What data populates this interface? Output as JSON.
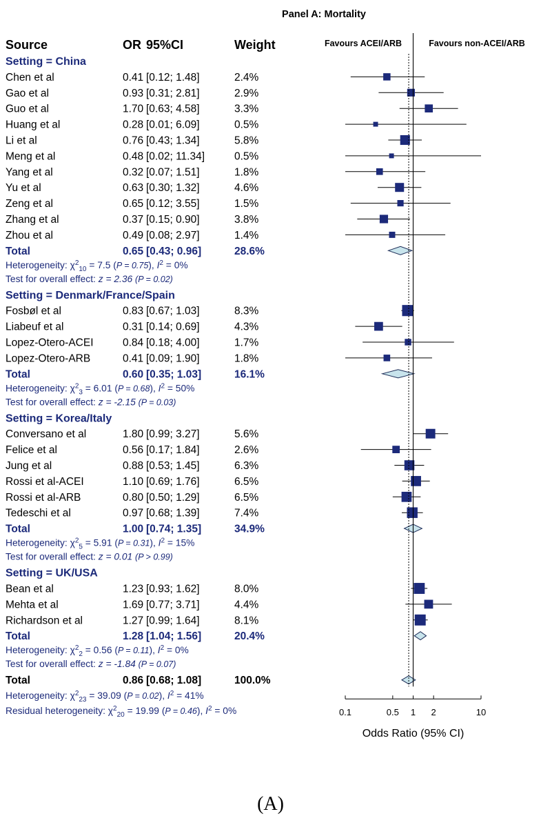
{
  "chart_data": {
    "type": "forest",
    "title": "Panel A: Mortality",
    "caption": "(A)",
    "columns": {
      "source": "Source",
      "or": "OR",
      "ci": "95%CI",
      "weight": "Weight"
    },
    "favours_left": "Favours ACEI/ARB",
    "favours_right": "Favours non-ACEI/ARB",
    "xlabel": "Odds Ratio (95% CI)",
    "x_scale": "log",
    "xlim": [
      0.1,
      10
    ],
    "x_ticks": [
      0.1,
      0.5,
      1,
      2,
      10
    ],
    "x_tick_labels": [
      "0.1",
      "0.5",
      "1",
      "2",
      "10"
    ],
    "reference_line": 1,
    "overall_dashed_line": 0.86,
    "subgroups": [
      {
        "header": "Setting = China",
        "studies": [
          {
            "name": "Chen et al",
            "or": 0.41,
            "lo": 0.12,
            "hi": 1.48,
            "or_text": "0.41",
            "ci_text": "[0.12;  1.48]",
            "weight_text": "2.4%",
            "weight": 2.4
          },
          {
            "name": "Gao et al",
            "or": 0.93,
            "lo": 0.31,
            "hi": 2.81,
            "or_text": "0.93",
            "ci_text": "[0.31;  2.81]",
            "weight_text": "2.9%",
            "weight": 2.9
          },
          {
            "name": "Guo et al",
            "or": 1.7,
            "lo": 0.63,
            "hi": 4.58,
            "or_text": "1.70",
            "ci_text": "[0.63;  4.58]",
            "weight_text": "3.3%",
            "weight": 3.3
          },
          {
            "name": "Huang et al",
            "or": 0.28,
            "lo": 0.01,
            "hi": 6.09,
            "or_text": "0.28",
            "ci_text": "[0.01;  6.09]",
            "weight_text": "0.5%",
            "weight": 0.5
          },
          {
            "name": "Li et al",
            "or": 0.76,
            "lo": 0.43,
            "hi": 1.34,
            "or_text": "0.76",
            "ci_text": "[0.43;  1.34]",
            "weight_text": "5.8%",
            "weight": 5.8
          },
          {
            "name": "Meng et al",
            "or": 0.48,
            "lo": 0.02,
            "hi": 11.34,
            "or_text": "0.48",
            "ci_text": "[0.02; 11.34]",
            "weight_text": "0.5%",
            "weight": 0.5
          },
          {
            "name": "Yang et al",
            "or": 0.32,
            "lo": 0.07,
            "hi": 1.51,
            "or_text": "0.32",
            "ci_text": "[0.07;  1.51]",
            "weight_text": "1.8%",
            "weight": 1.8
          },
          {
            "name": "Yu et al",
            "or": 0.63,
            "lo": 0.3,
            "hi": 1.32,
            "or_text": "0.63",
            "ci_text": "[0.30;  1.32]",
            "weight_text": "4.6%",
            "weight": 4.6
          },
          {
            "name": "Zeng et al",
            "or": 0.65,
            "lo": 0.12,
            "hi": 3.55,
            "or_text": "0.65",
            "ci_text": "[0.12;  3.55]",
            "weight_text": "1.5%",
            "weight": 1.5
          },
          {
            "name": "Zhang et al",
            "or": 0.37,
            "lo": 0.15,
            "hi": 0.9,
            "or_text": "0.37",
            "ci_text": "[0.15;  0.90]",
            "weight_text": "3.8%",
            "weight": 3.8
          },
          {
            "name": "Zhou et al",
            "or": 0.49,
            "lo": 0.08,
            "hi": 2.97,
            "or_text": "0.49",
            "ci_text": "[0.08;  2.97]",
            "weight_text": "1.4%",
            "weight": 1.4
          }
        ],
        "total": {
          "label": "Total",
          "or": 0.65,
          "lo": 0.43,
          "hi": 0.96,
          "or_text": "0.65",
          "ci_text": "[0.43;  0.96]",
          "weight_text": "28.6%"
        },
        "heterogeneity": {
          "lead": "Heterogeneity: χ",
          "sub": "10",
          "sup": "2",
          "mid": " = 7.5 (",
          "p": "P = 0.75",
          "tail": "), ",
          "i2": " = 0%"
        },
        "overall_test": {
          "lead": "Test for overall effect: ",
          "z": "z = 2.36",
          "p": "(P = 0.02)"
        }
      },
      {
        "header": "Setting = Denmark/France/Spain",
        "studies": [
          {
            "name": "Fosbøl et al",
            "or": 0.83,
            "lo": 0.67,
            "hi": 1.03,
            "or_text": "0.83",
            "ci_text": "[0.67;  1.03]",
            "weight_text": "8.3%",
            "weight": 8.3
          },
          {
            "name": "Liabeuf et al",
            "or": 0.31,
            "lo": 0.14,
            "hi": 0.69,
            "or_text": "0.31",
            "ci_text": "[0.14;  0.69]",
            "weight_text": "4.3%",
            "weight": 4.3
          },
          {
            "name": "Lopez-Otero-ACEI",
            "or": 0.84,
            "lo": 0.18,
            "hi": 4.0,
            "or_text": "0.84",
            "ci_text": "[0.18;  4.00]",
            "weight_text": "1.7%",
            "weight": 1.7
          },
          {
            "name": "Lopez-Otero-ARB",
            "or": 0.41,
            "lo": 0.09,
            "hi": 1.9,
            "or_text": "0.41",
            "ci_text": "[0.09;  1.90]",
            "weight_text": "1.8%",
            "weight": 1.8
          }
        ],
        "total": {
          "label": "Total",
          "or": 0.6,
          "lo": 0.35,
          "hi": 1.03,
          "or_text": "0.60",
          "ci_text": "[0.35;  1.03]",
          "weight_text": "16.1%"
        },
        "heterogeneity": {
          "lead": "Heterogeneity: χ",
          "sub": "3",
          "sup": "2",
          "mid": " = 6.01 (",
          "p": "P = 0.68",
          "tail": "), ",
          "i2": " = 50%"
        },
        "overall_test": {
          "lead": "Test for overall effect: ",
          "z": "z = -2.15",
          "p": "(P = 0.03)"
        }
      },
      {
        "header": "Setting = Korea/Italy",
        "studies": [
          {
            "name": "Conversano et al",
            "or": 1.8,
            "lo": 0.99,
            "hi": 3.27,
            "or_text": "1.80",
            "ci_text": "[0.99;  3.27]",
            "weight_text": "5.6%",
            "weight": 5.6
          },
          {
            "name": "Felice et al",
            "or": 0.56,
            "lo": 0.17,
            "hi": 1.84,
            "or_text": "0.56",
            "ci_text": "[0.17;  1.84]",
            "weight_text": "2.6%",
            "weight": 2.6
          },
          {
            "name": "Jung et al",
            "or": 0.88,
            "lo": 0.53,
            "hi": 1.45,
            "or_text": "0.88",
            "ci_text": "[0.53;  1.45]",
            "weight_text": "6.3%",
            "weight": 6.3
          },
          {
            "name": "Rossi et al-ACEI",
            "or": 1.1,
            "lo": 0.69,
            "hi": 1.76,
            "or_text": "1.10",
            "ci_text": "[0.69;  1.76]",
            "weight_text": "6.5%",
            "weight": 6.5
          },
          {
            "name": "Rossi et al-ARB",
            "or": 0.8,
            "lo": 0.5,
            "hi": 1.29,
            "or_text": "0.80",
            "ci_text": "[0.50;  1.29]",
            "weight_text": "6.5%",
            "weight": 6.5
          },
          {
            "name": "Tedeschi et al",
            "or": 0.97,
            "lo": 0.68,
            "hi": 1.39,
            "or_text": "0.97",
            "ci_text": "[0.68;  1.39]",
            "weight_text": "7.4%",
            "weight": 7.4
          }
        ],
        "total": {
          "label": "Total",
          "or": 1.0,
          "lo": 0.74,
          "hi": 1.35,
          "or_text": "1.00",
          "ci_text": "[0.74;  1.35]",
          "weight_text": "34.9%"
        },
        "heterogeneity": {
          "lead": "Heterogeneity: χ",
          "sub": "5",
          "sup": "2",
          "mid": " = 5.91 (",
          "p": "P = 0.31",
          "tail": "), ",
          "i2": " = 15%"
        },
        "overall_test": {
          "lead": "Test for overall effect: ",
          "z": "z = 0.01",
          "p": "(P > 0.99)"
        }
      },
      {
        "header": "Setting = UK/USA",
        "studies": [
          {
            "name": "Bean et al",
            "or": 1.23,
            "lo": 0.93,
            "hi": 1.62,
            "or_text": "1.23",
            "ci_text": "[0.93;  1.62]",
            "weight_text": "8.0%",
            "weight": 8.0
          },
          {
            "name": "Mehta et al",
            "or": 1.69,
            "lo": 0.77,
            "hi": 3.71,
            "or_text": "1.69",
            "ci_text": "[0.77;  3.71]",
            "weight_text": "4.4%",
            "weight": 4.4
          },
          {
            "name": "Richardson et al",
            "or": 1.27,
            "lo": 0.99,
            "hi": 1.64,
            "or_text": "1.27",
            "ci_text": "[0.99;  1.64]",
            "weight_text": "8.1%",
            "weight": 8.1
          }
        ],
        "total": {
          "label": "Total",
          "or": 1.28,
          "lo": 1.04,
          "hi": 1.56,
          "or_text": "1.28",
          "ci_text": "[1.04;  1.56]",
          "weight_text": "20.4%"
        },
        "heterogeneity": {
          "lead": "Heterogeneity: χ",
          "sub": "2",
          "sup": "2",
          "mid": " = 0.56 (",
          "p": "P = 0.11",
          "tail": "), ",
          "i2": " = 0%"
        },
        "overall_test": {
          "lead": "Test for overall effect: ",
          "z": "z = -1.84",
          "p": "(P = 0.07)"
        }
      }
    ],
    "overall": {
      "label": "Total",
      "or": 0.86,
      "lo": 0.68,
      "hi": 1.08,
      "or_text": "0.86",
      "ci_text": "[0.68;  1.08]",
      "weight_text": "100.0%",
      "heterogeneity": {
        "lead": "Heterogeneity: χ",
        "sub": "23",
        "sup": "2",
        "mid": " = 39.09 (",
        "p": "P = 0.02",
        "tail": "), ",
        "i2": " = 41%"
      },
      "residual": {
        "lead": "Residual heterogeneity: χ",
        "sub": "20",
        "sup": "2",
        "mid": " = 19.99 (",
        "p": "P = 0.46",
        "tail": "), ",
        "i2": " = 0%"
      }
    },
    "colors": {
      "navy": "#1c2a7a",
      "diamond_fill": "#c8e4ec",
      "diamond_stroke": "#1a2a55",
      "text": "#000000"
    }
  }
}
